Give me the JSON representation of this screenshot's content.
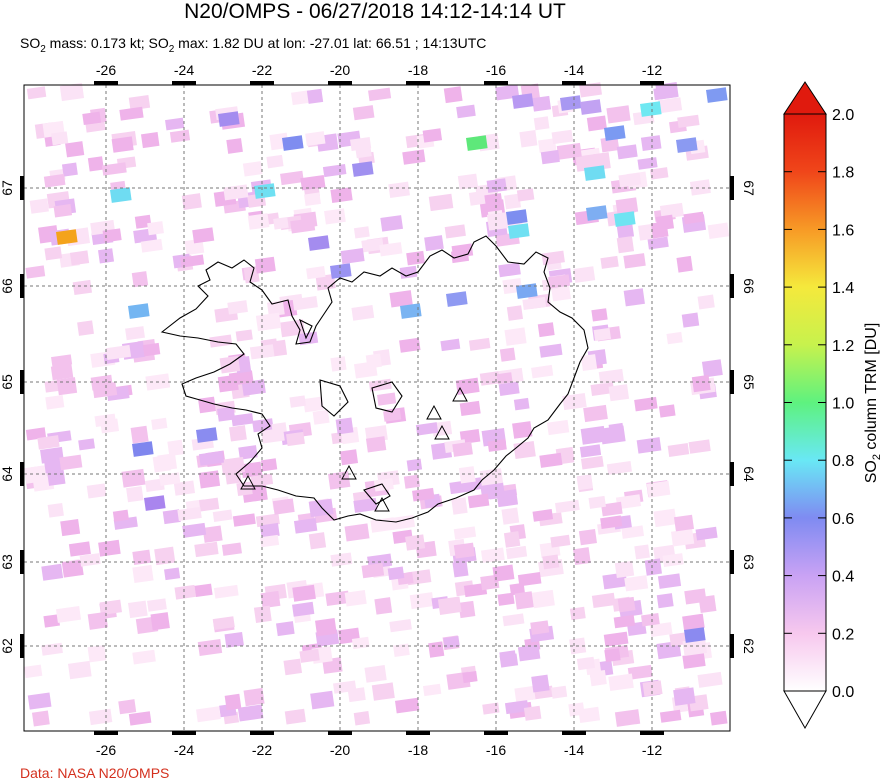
{
  "header": {
    "title": "N20/OMPS - 06/27/2018 14:12-14:14 UT",
    "subtitle_mass_prefix": "SO",
    "subtitle_mass_rest": " mass: 0.173 kt; SO",
    "subtitle_max_rest": " max: 1.82 DU at lon: -27.01 lat: 66.51 ; 14:13UTC",
    "subscript": "2"
  },
  "credit": "Data: NASA N20/OMPS",
  "map": {
    "lon_ticks": [
      "-26",
      "-24",
      "-22",
      "-20",
      "-18",
      "-16",
      "-14",
      "-12"
    ],
    "lat_ticks": [
      "67",
      "66",
      "65",
      "64",
      "63",
      "62"
    ],
    "volcano_markers": [
      "volcano-triangle",
      "volcano-triangle",
      "volcano-triangle",
      "volcano-triangle",
      "volcano-triangle",
      "volcano-triangle"
    ]
  },
  "colorbar": {
    "label_main": "SO",
    "label_sub": "2",
    "label_rest": " column TRM [DU]",
    "ticks": [
      "2.0",
      "1.8",
      "1.6",
      "1.4",
      "1.2",
      "1.0",
      "0.8",
      "0.6",
      "0.4",
      "0.2",
      "0.0"
    ],
    "colors": [
      "#ffffff",
      "#f7c8ee",
      "#c9a2f4",
      "#7f8bf2",
      "#69e8f5",
      "#5ef27f",
      "#c7f24d",
      "#f5e93c",
      "#f79a26",
      "#f0461a",
      "#e01a0e"
    ]
  }
}
